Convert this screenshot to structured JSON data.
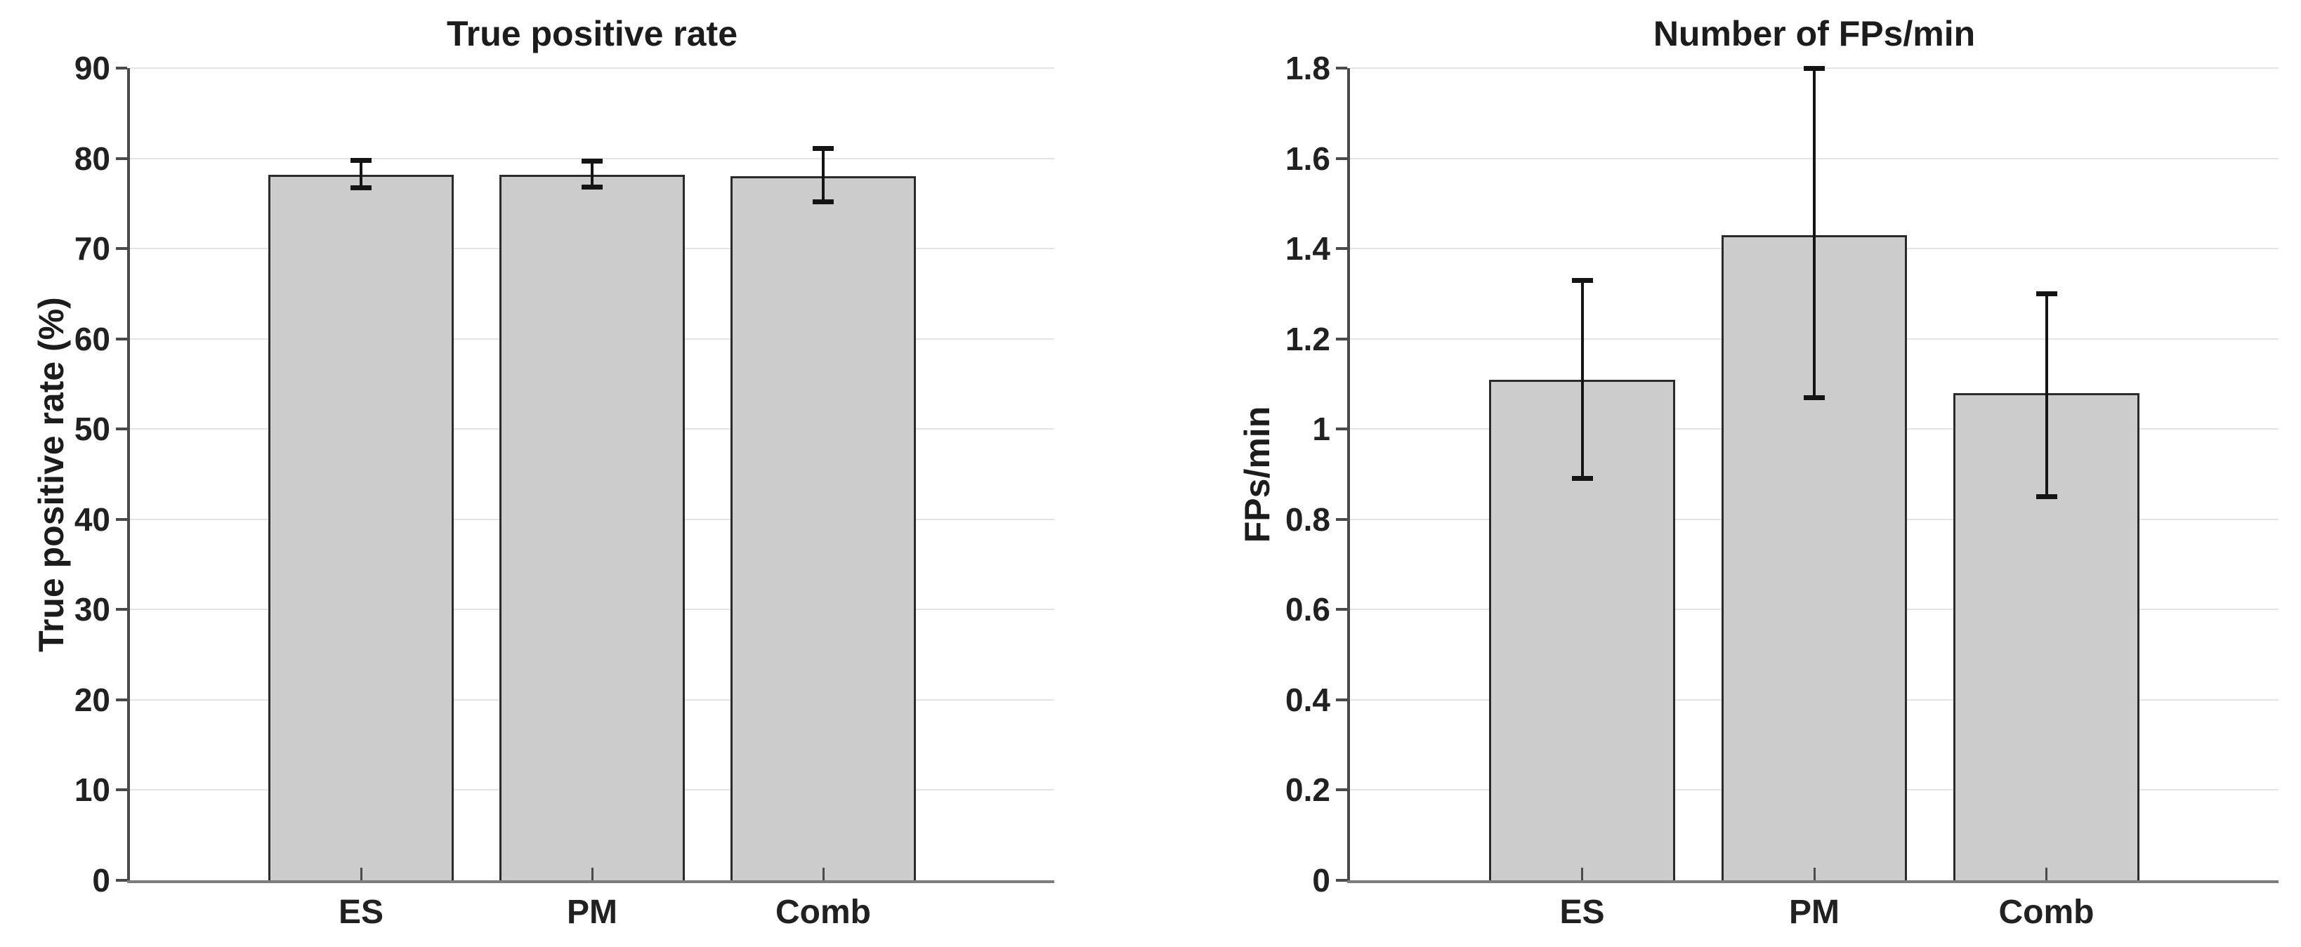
{
  "figure": {
    "background": "#ffffff",
    "text_color": "#1c1c1c",
    "axis_color": "#4a4a4a",
    "gridline_color": "#e4e4e4"
  },
  "chart_data": [
    {
      "type": "bar",
      "title": "True positive rate",
      "ylabel": "True positive rate (%)",
      "xlabel": "",
      "categories": [
        "ES",
        "PM",
        "Comb"
      ],
      "values": [
        78.2,
        78.2,
        78.0
      ],
      "error_low": [
        76.7,
        76.8,
        75.2
      ],
      "error_high": [
        79.8,
        79.7,
        81.1
      ],
      "ylim": [
        0,
        90
      ],
      "yticks": [
        0,
        10,
        20,
        30,
        40,
        50,
        60,
        70,
        80,
        90
      ],
      "ytick_labels": [
        "0",
        "10",
        "20",
        "30",
        "40",
        "50",
        "60",
        "70",
        "80",
        "90"
      ],
      "grid": "horizontal-only",
      "legend": "none",
      "bar_width_frac": 0.2,
      "bar_fill": "#cccccc",
      "bar_edge": "#2b2b2b",
      "error_color": "#141414"
    },
    {
      "type": "bar",
      "title": "Number of FPs/min",
      "ylabel": "FPs/min",
      "xlabel": "",
      "categories": [
        "ES",
        "PM",
        "Comb"
      ],
      "values": [
        1.11,
        1.43,
        1.08
      ],
      "error_low": [
        0.89,
        1.07,
        0.85
      ],
      "error_high": [
        1.33,
        1.8,
        1.3
      ],
      "ylim": [
        0,
        1.8
      ],
      "yticks": [
        0,
        0.2,
        0.4,
        0.6,
        0.8,
        1.0,
        1.2,
        1.4,
        1.6,
        1.8
      ],
      "ytick_labels": [
        "0",
        "0.2",
        "0.4",
        "0.6",
        "0.8",
        "1",
        "1.2",
        "1.4",
        "1.6",
        "1.8"
      ],
      "grid": "horizontal-only",
      "legend": "none",
      "bar_width_frac": 0.2,
      "bar_fill": "#cccccc",
      "bar_edge": "#2b2b2b",
      "error_color": "#141414"
    }
  ]
}
